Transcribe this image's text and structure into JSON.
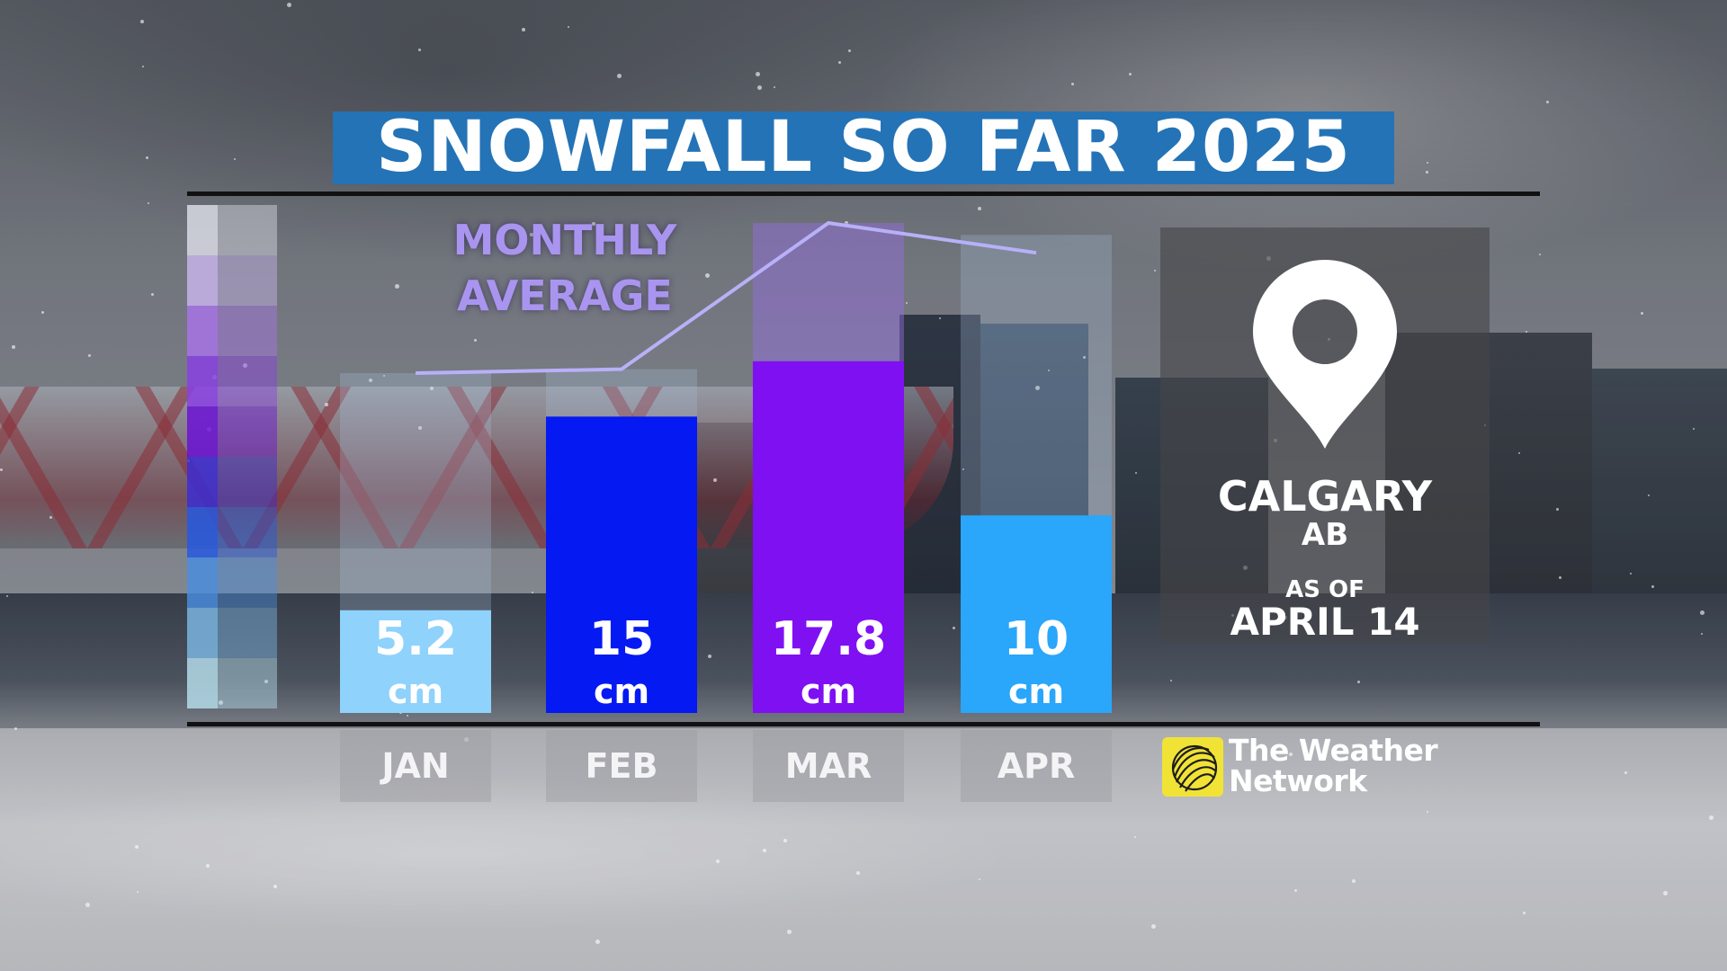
{
  "header": {
    "title": "SNOWFALL SO FAR 2025"
  },
  "legend": {
    "monthly_average_line1": "MONTHLY",
    "monthly_average_line2": "AVERAGE"
  },
  "location": {
    "city": "CALGARY",
    "province": "AB",
    "as_of_label": "AS OF",
    "as_of_date": "APRIL 14"
  },
  "brand": {
    "name_line1": "The Weather",
    "name_line2": "Network"
  },
  "colors": {
    "title_bg": "#2473b6",
    "jan": "#8fd2fb",
    "feb": "#0519f3",
    "mar": "#7f10f2",
    "apr": "#2aa6fb",
    "average_line": "#b8b0f8",
    "logo_yellow": "#f1e336"
  },
  "chart_data": {
    "type": "bar",
    "title": "SNOWFALL SO FAR 2025",
    "categories": [
      "JAN",
      "FEB",
      "MAR",
      "APR"
    ],
    "unit": "cm",
    "series": [
      {
        "values": [
          5.2,
          15,
          17.8,
          10
        ],
        "value_labels": [
          "5.2",
          "15",
          "17.8",
          "10"
        ]
      },
      {
        "name": "MONTHLY AVERAGE",
        "type": "line",
        "values": [
          17.2,
          17.4,
          24.8,
          24.2
        ]
      }
    ],
    "ylim": [
      0,
      24.8
    ],
    "grid": false,
    "legend": "inline-top-left"
  }
}
